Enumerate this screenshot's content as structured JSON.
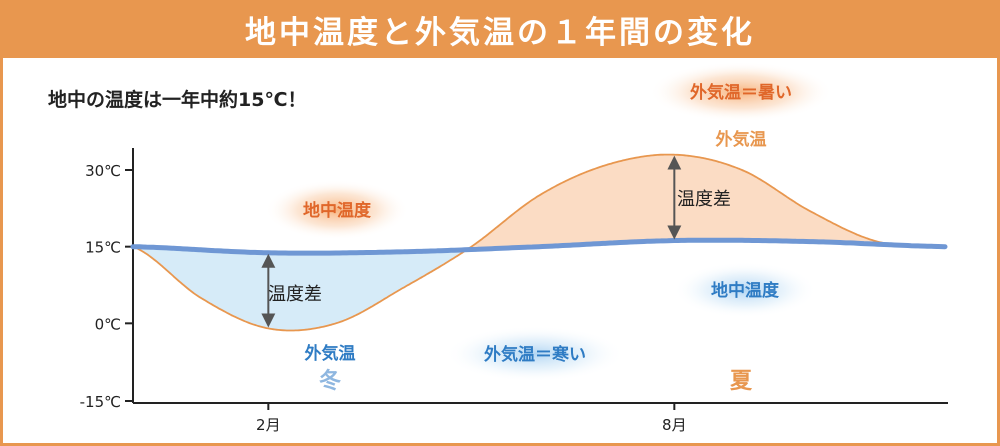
{
  "title": "地中温度と外気温の１年間の変化",
  "subtitle": "地中の温度は一年中約15℃！",
  "colors": {
    "accent": "#e8974f",
    "ground_line": "#6f97d4",
    "air_line": "#e8974f",
    "winter_fill": "#d6ebf8",
    "summer_fill": "#fbdcc4",
    "label_orange": "#e0672a",
    "label_blue": "#2f7cc4",
    "season_blue": "#8fb7e0",
    "season_orange": "#e8974f"
  },
  "chart_data": {
    "type": "line",
    "title": "地中温度と外気温の１年間の変化",
    "ylim": [
      -15,
      30
    ],
    "yticks": [
      {
        "value": 30,
        "label": "30℃"
      },
      {
        "value": 15,
        "label": "15℃"
      },
      {
        "value": 0,
        "label": "0℃"
      },
      {
        "value": -15,
        "label": "-15℃"
      }
    ],
    "xticks": [
      {
        "month": 2,
        "label": "2月"
      },
      {
        "month": 8,
        "label": "8月"
      }
    ],
    "series": [
      {
        "key": "air",
        "name": "外気温",
        "x": [
          0,
          1,
          2,
          3,
          4,
          5,
          6,
          7,
          8,
          9,
          10,
          11,
          12
        ],
        "values": [
          15,
          5,
          -1,
          0,
          7,
          15,
          25,
          31,
          33,
          30,
          22,
          16,
          15
        ]
      },
      {
        "key": "ground",
        "name": "地中温度",
        "x": [
          0,
          2,
          4,
          6,
          8,
          10,
          12
        ],
        "values": [
          15,
          13.8,
          14,
          15,
          16.2,
          16,
          15
        ]
      }
    ],
    "annotations": {
      "ground_label_winter": "地中温度",
      "ground_label_summer": "地中温度",
      "air_label_winter": "外気温",
      "air_label_summer": "外気温",
      "diff_label": "温度差",
      "cold_label": "外気温＝寒い",
      "hot_label": "外気温＝暑い",
      "winter": "冬",
      "summer": "夏"
    }
  }
}
